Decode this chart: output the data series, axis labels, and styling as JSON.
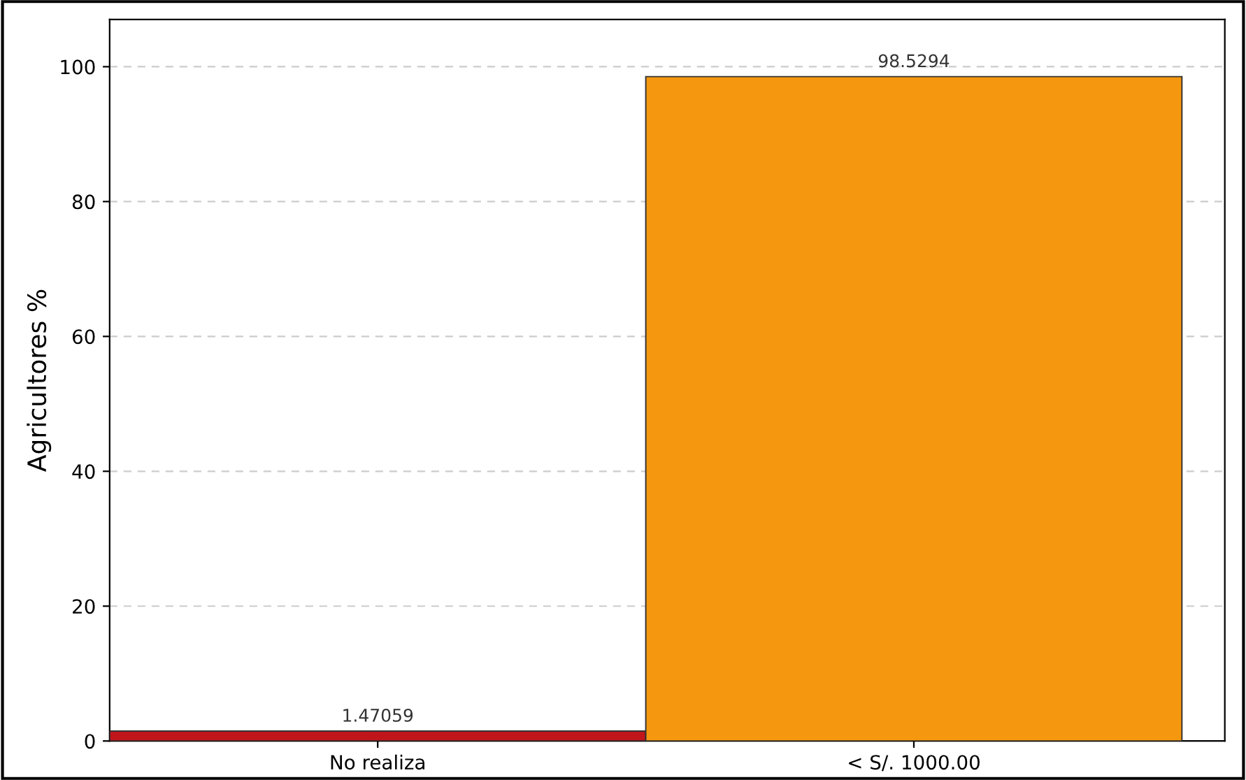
{
  "chart_data": {
    "type": "bar",
    "ylabel": "Agricultores %",
    "categories": [
      "No realiza",
      "< S/. 1000.00"
    ],
    "values": [
      1.47059,
      98.5294
    ],
    "colors": [
      "#c0161b",
      "#f5980f"
    ],
    "ylim": [
      0,
      107
    ],
    "yticks": [
      0,
      20,
      40,
      60,
      80,
      100
    ],
    "grid": "y",
    "data_labels": true,
    "legend": false
  }
}
